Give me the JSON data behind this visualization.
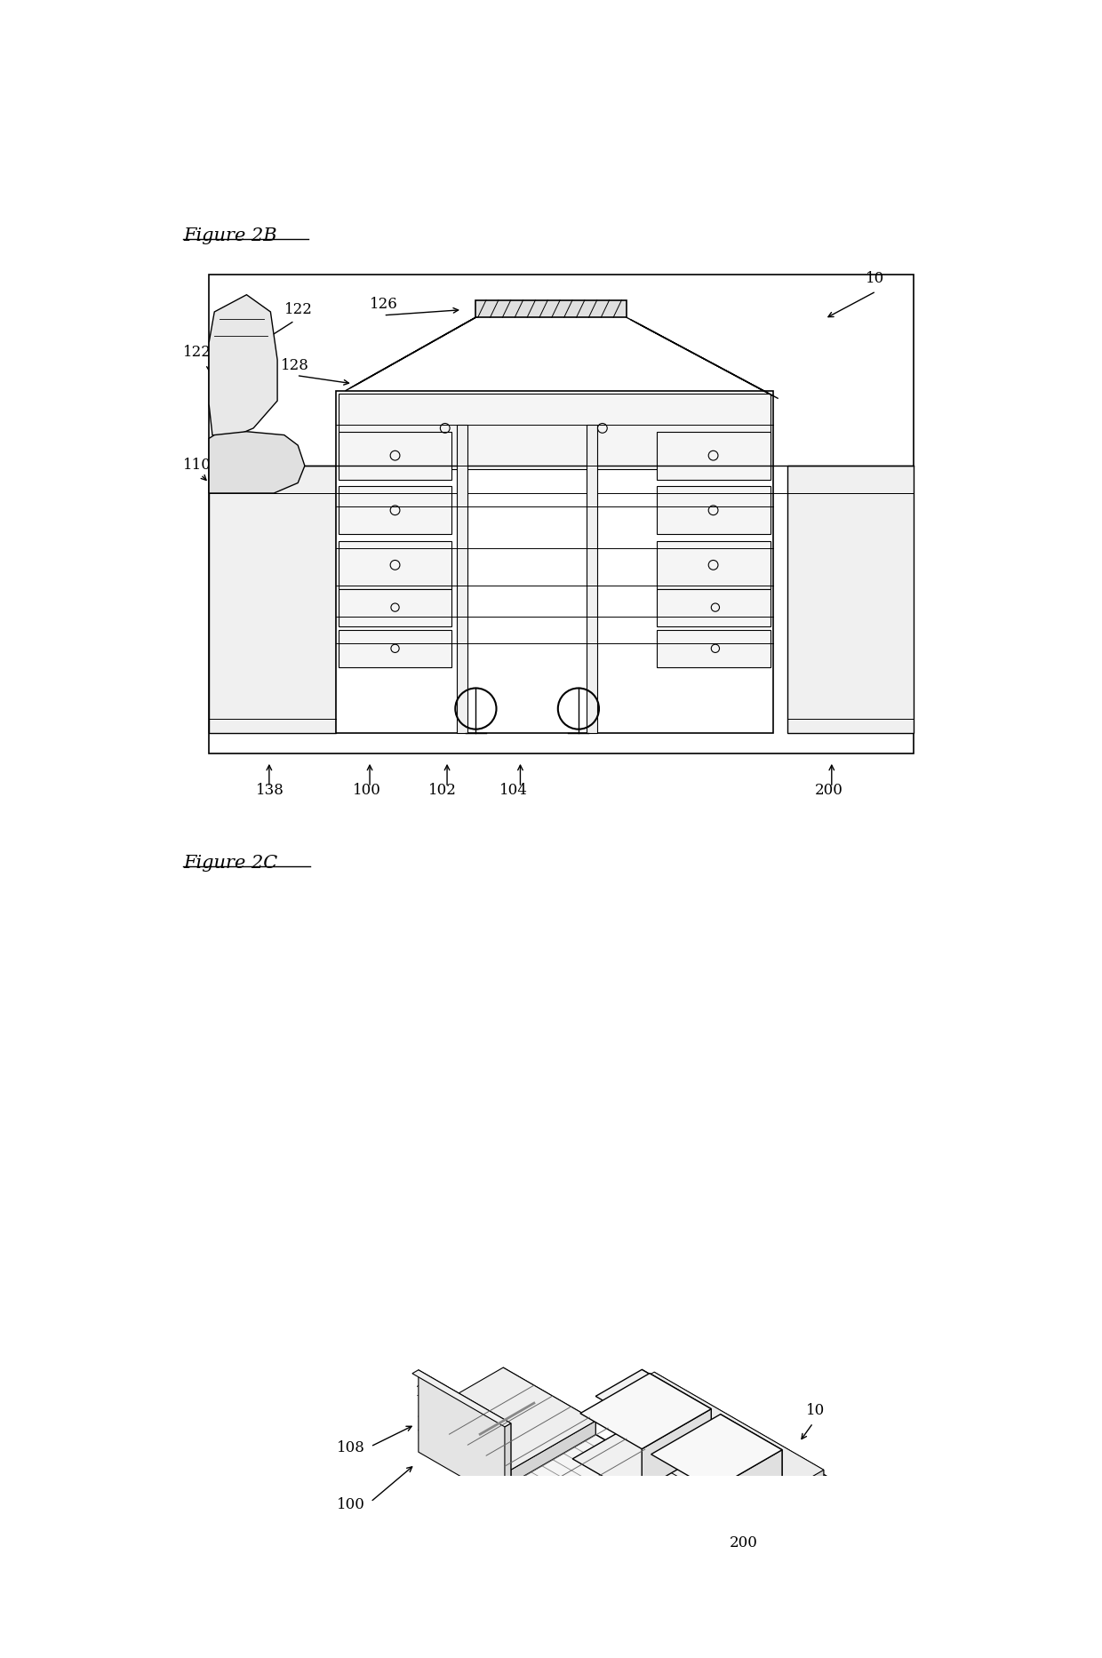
{
  "fig_title_2b": "Figure 2B",
  "fig_title_2c": "Figure 2C",
  "bg_color": "#ffffff",
  "line_color": "#000000",
  "label_fontsize": 12,
  "title_fontsize": 15
}
